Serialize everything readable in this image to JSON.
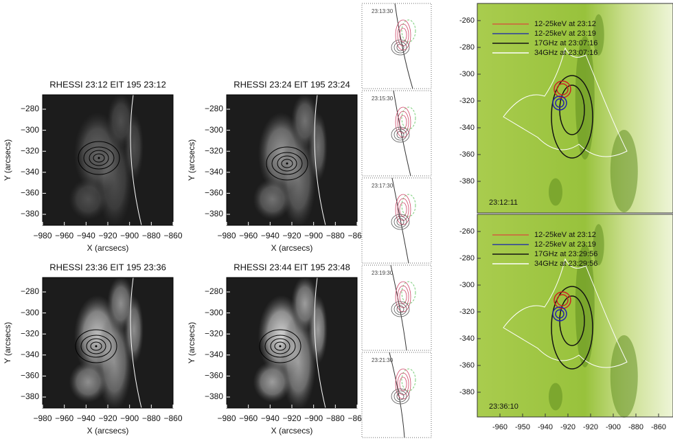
{
  "panels": [
    {
      "title": "RHESSI 23:12 EIT 195 23:12",
      "xlabel": "X (arcsecs)",
      "ylabel": "Y (arcsecs)",
      "yticks": [
        "−280",
        "−300",
        "−320",
        "−340",
        "−360",
        "−380"
      ],
      "xticks": [
        "−980",
        "−960",
        "−940",
        "−920",
        "−900",
        "−880",
        "−860"
      ]
    },
    {
      "title": "RHESSI 23:24 EIT 195 23:24",
      "xlabel": "X (arcsecs)",
      "ylabel": "Y (arcsecs)",
      "yticks": [
        "−280",
        "−300",
        "−320",
        "−340",
        "−360",
        "−380"
      ],
      "xticks": [
        "−980",
        "−960",
        "−940",
        "−920",
        "−900",
        "−880",
        "−860"
      ]
    },
    {
      "title": "RHESSI 23:36 EIT 195 23:36",
      "xlabel": "X (arcsecs)",
      "ylabel": "Y (arcsecs)",
      "yticks": [
        "−280",
        "−300",
        "−320",
        "−340",
        "−360",
        "−380"
      ],
      "xticks": [
        "−980",
        "−960",
        "−940",
        "−920",
        "−900",
        "−880",
        "−860"
      ]
    },
    {
      "title": "RHESSI 23:44 EIT 195 23:48",
      "xlabel": "X (arcsecs)",
      "ylabel": "Y (arcsecs)",
      "yticks": [
        "−280",
        "−300",
        "−320",
        "−340",
        "−360",
        "−380"
      ],
      "xticks": [
        "−980",
        "−960",
        "−940",
        "−920",
        "−900",
        "−880",
        "−860"
      ]
    }
  ],
  "strips": [
    "23:13:30",
    "23:15:30",
    "23:17:30",
    "23:19:30",
    "23:21:30"
  ],
  "maps": [
    {
      "time": "23:12:11",
      "legend": [
        "12-25keV at 23:12",
        "12-25keV at 23:19",
        "17GHz at 23:07:16",
        "34GHz at 23:07:16"
      ],
      "yticks": [
        "-260",
        "-280",
        "-300",
        "-320",
        "-340",
        "-360",
        "-380"
      ]
    },
    {
      "time": "23:36:10",
      "legend": [
        "12-25keV at 23:12",
        "12-25keV at 23:19",
        "17GHz at 23:29:56",
        "34GHz at 23:29:56"
      ],
      "yticks": [
        "-260",
        "-280",
        "-300",
        "-320",
        "-340",
        "-360",
        "-380"
      ]
    }
  ],
  "map_xticks": [
    "-960",
    "-950",
    "-940",
    "-920",
    "-920",
    "-900",
    "-880",
    "-860"
  ]
}
